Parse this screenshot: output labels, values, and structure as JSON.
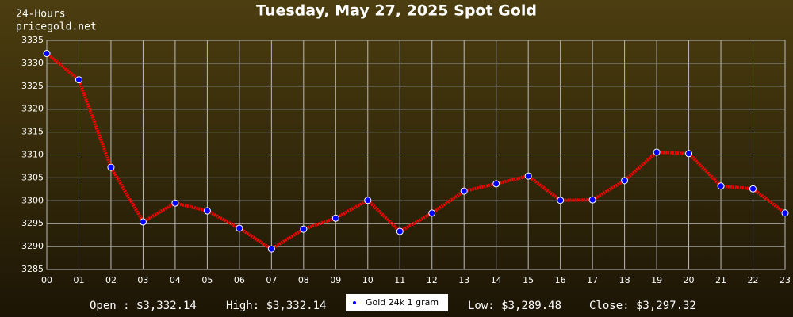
{
  "chart_data": {
    "type": "line",
    "title": "Tuesday, May 27, 2025 Spot Gold",
    "corner_labels": [
      "24-Hours",
      "pricegold.net"
    ],
    "categories": [
      "00",
      "01",
      "02",
      "03",
      "04",
      "05",
      "06",
      "07",
      "08",
      "09",
      "10",
      "11",
      "12",
      "13",
      "14",
      "15",
      "16",
      "17",
      "18",
      "19",
      "20",
      "21",
      "22",
      "23"
    ],
    "series": [
      {
        "name": "Gold 24k 1 gram",
        "color": "#ff0000",
        "marker_color": "#0000ff",
        "values": [
          3332.14,
          3326.4,
          3307.3,
          3295.4,
          3299.5,
          3297.8,
          3294.0,
          3289.48,
          3293.8,
          3296.2,
          3300.1,
          3293.3,
          3297.3,
          3302.1,
          3303.7,
          3305.4,
          3300.1,
          3300.2,
          3304.4,
          3310.6,
          3310.3,
          3303.2,
          3302.6,
          3297.32
        ]
      }
    ],
    "ylim": [
      3285,
      3335
    ],
    "yticks": [
      3285,
      3290,
      3295,
      3300,
      3305,
      3310,
      3315,
      3320,
      3325,
      3330,
      3335
    ],
    "grid": true,
    "footer": {
      "open": "Open : $3,332.14",
      "high": "High: $3,332.14",
      "low": "Low: $3,289.48",
      "close": "Close: $3,297.32"
    }
  }
}
